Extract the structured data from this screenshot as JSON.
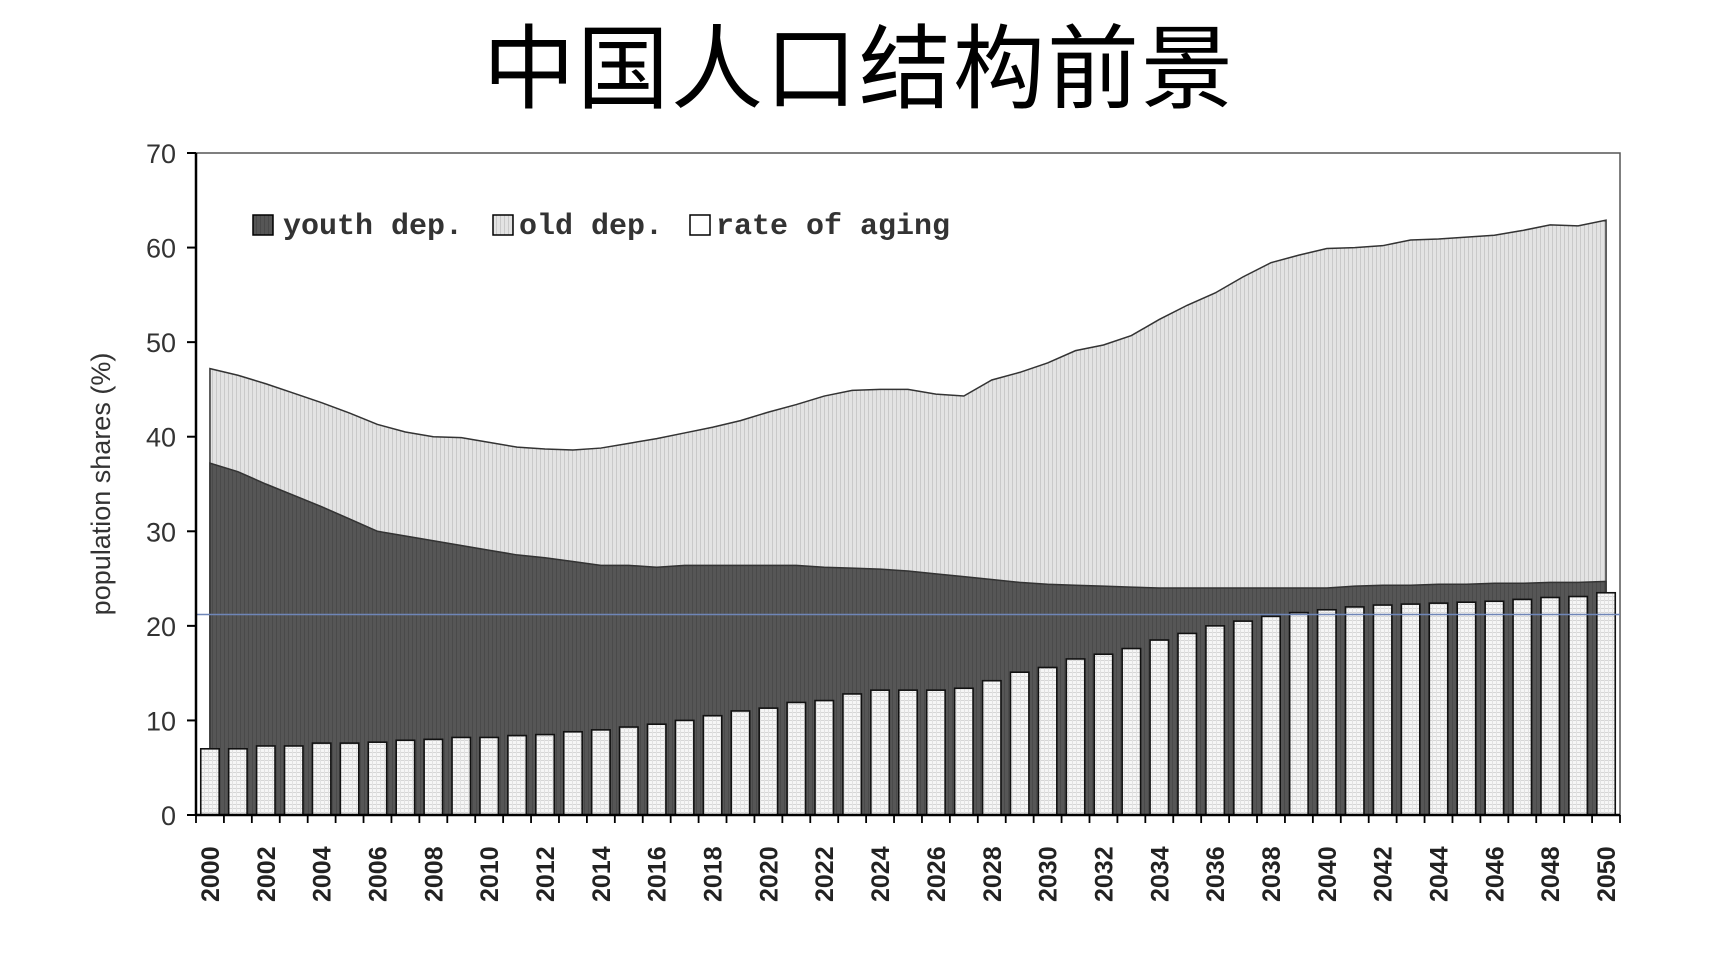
{
  "title": "中国人口结构前景",
  "chart_data": {
    "type": "area",
    "title": "中国人口结构前景",
    "ylabel": "population shares (%)",
    "xlabel": "",
    "ylim": [
      0,
      70
    ],
    "yticks": [
      0,
      10,
      20,
      30,
      40,
      50,
      60,
      70
    ],
    "legend_position": "top-left",
    "grid": false,
    "reference_line": 21.2,
    "x": [
      2000,
      2001,
      2002,
      2003,
      2004,
      2005,
      2006,
      2007,
      2008,
      2009,
      2010,
      2011,
      2012,
      2013,
      2014,
      2015,
      2016,
      2017,
      2018,
      2019,
      2020,
      2021,
      2022,
      2023,
      2024,
      2025,
      2026,
      2027,
      2028,
      2029,
      2030,
      2031,
      2032,
      2033,
      2034,
      2035,
      2036,
      2037,
      2038,
      2039,
      2040,
      2041,
      2042,
      2043,
      2044,
      2045,
      2046,
      2047,
      2048,
      2049,
      2050
    ],
    "xtick_labels": [
      "2000",
      "2002",
      "2004",
      "2006",
      "2008",
      "2010",
      "2012",
      "2014",
      "2016",
      "2018",
      "2020",
      "2022",
      "2024",
      "2026",
      "2028",
      "2030",
      "2032",
      "2034",
      "2036",
      "2038",
      "2040",
      "2042",
      "2044",
      "2046",
      "2048",
      "2050"
    ],
    "series": [
      {
        "name": "youth dep.",
        "kind": "area",
        "color": "#555555",
        "values": [
          37.2,
          36.3,
          35.0,
          33.8,
          32.6,
          31.3,
          30.0,
          29.5,
          29.0,
          28.5,
          28.0,
          27.5,
          27.2,
          26.8,
          26.4,
          26.4,
          26.2,
          26.4,
          26.4,
          26.4,
          26.4,
          26.4,
          26.2,
          26.1,
          26.0,
          25.8,
          25.5,
          25.2,
          24.9,
          24.6,
          24.4,
          24.3,
          24.2,
          24.1,
          24.0,
          24.0,
          24.0,
          24.0,
          24.0,
          24.0,
          24.0,
          24.2,
          24.3,
          24.3,
          24.4,
          24.4,
          24.5,
          24.5,
          24.6,
          24.6,
          24.7
        ]
      },
      {
        "name": "old dep.",
        "kind": "area",
        "color": "#dddddd",
        "values": [
          10.0,
          10.2,
          10.6,
          10.8,
          11.0,
          11.2,
          11.3,
          11.0,
          11.0,
          11.4,
          11.4,
          11.4,
          11.5,
          11.8,
          12.4,
          12.9,
          13.6,
          14.0,
          14.6,
          15.3,
          16.2,
          17.0,
          18.1,
          18.8,
          19.0,
          19.2,
          19.0,
          19.1,
          21.1,
          22.2,
          23.4,
          24.8,
          25.5,
          26.6,
          28.4,
          29.9,
          31.2,
          32.9,
          34.4,
          35.2,
          35.9,
          35.8,
          35.9,
          36.5,
          36.5,
          36.7,
          36.8,
          37.3,
          37.8,
          37.7,
          38.2
        ]
      },
      {
        "name": "rate of aging",
        "kind": "bar",
        "color": "#ffffff",
        "values": [
          7.0,
          7.0,
          7.3,
          7.3,
          7.6,
          7.6,
          7.7,
          7.9,
          8.0,
          8.2,
          8.2,
          8.4,
          8.5,
          8.8,
          9.0,
          9.3,
          9.6,
          10.0,
          10.5,
          11.0,
          11.3,
          11.9,
          12.1,
          12.8,
          13.2,
          13.2,
          13.2,
          13.4,
          14.2,
          15.1,
          15.6,
          16.5,
          17.0,
          17.6,
          18.5,
          19.2,
          20.0,
          20.5,
          21.0,
          21.4,
          21.7,
          22.0,
          22.2,
          22.3,
          22.4,
          22.5,
          22.6,
          22.8,
          23.0,
          23.1,
          23.5
        ]
      }
    ]
  }
}
